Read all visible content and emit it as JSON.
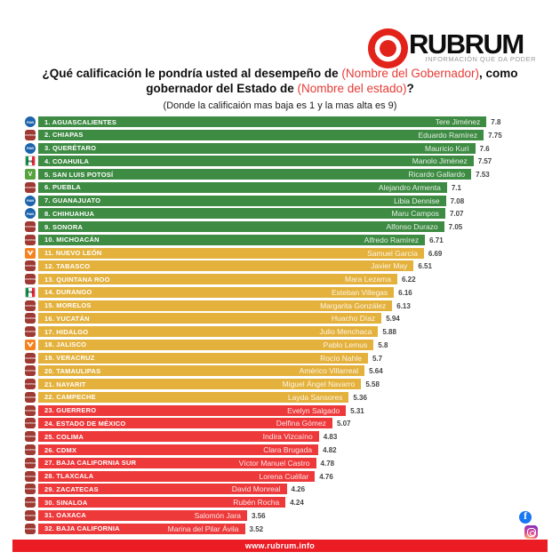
{
  "brand": {
    "name": "RUBRUM",
    "tagline": "INFORMACIÓN QUE DA PODER",
    "logo_color": "#e2231a"
  },
  "title": {
    "line1_black": "¿Qué calificación le pondría usted al desempeño de ",
    "line1_red": "(Nombre del Gobernador)",
    "line1_black2": ", como",
    "line2_black": "gobernador del Estado de ",
    "line2_red": "(Nombre del estado)",
    "line2_black2": "?",
    "subtitle": "(Donde la calificaión mas baja es 1 y la mas alta es 9)",
    "highlight_color": "#e63b35"
  },
  "chart_data": {
    "type": "bar",
    "orientation": "horizontal",
    "title": "¿Qué calificación le pondría usted al desempeño de (Nombre del Gobernador), como gobernador del Estado de (Nombre del estado)?",
    "scale_note": "(Donde la calificaión mas baja es 1 y la mas alta es 9)",
    "value_range": [
      1,
      9
    ],
    "grid": false,
    "legend": false,
    "categories": [
      "AGUASCALIENTES",
      "CHIAPAS",
      "QUERÉTARO",
      "COAHUILA",
      "SAN LUIS POTOSÍ",
      "PUEBLA",
      "GUANAJUATO",
      "CHIHUAHUA",
      "SONORA",
      "MICHOACÁN",
      "NUEVO LEÓN",
      "TABASCO",
      "QUINTANA ROO",
      "DURANGO",
      "MORELOS",
      "YUCATÁN",
      "HIDALGO",
      "JALISCO",
      "VERACRUZ",
      "TAMAULIPAS",
      "NAYARIT",
      "CAMPECHE",
      "GUERRERO",
      "ESTADO DE MÉXICO",
      "COLIMA",
      "CDMX",
      "BAJA CALIFORNIA SUR",
      "TLAXCALA",
      "ZACATECAS",
      "SINALOA",
      "OAXACA",
      "BAJA CALIFORNIA"
    ],
    "values": [
      7.8,
      7.75,
      7.6,
      7.57,
      7.53,
      7.1,
      7.08,
      7.07,
      7.05,
      6.71,
      6.69,
      6.51,
      6.22,
      6.16,
      6.13,
      5.94,
      5.88,
      5.8,
      5.7,
      5.64,
      5.58,
      5.36,
      5.31,
      5.07,
      4.83,
      4.82,
      4.78,
      4.76,
      4.26,
      4.24,
      3.56,
      3.52
    ],
    "value_labels": [
      "7.8",
      "7.75",
      "7.6",
      "7.57",
      "7.53",
      "7.1",
      "7.08",
      "7.07",
      "7.05",
      "6.71",
      "6.69",
      "6.51",
      "6.22",
      "6.16",
      "6.13",
      "5.94",
      "5.88",
      "5.8",
      "5.7",
      "5.64",
      "5.58",
      "5.36",
      "5.31",
      "5.07",
      "4.83",
      "4.82",
      "4.78",
      "4.76",
      "4.26",
      "4.24",
      "3.56",
      "3.52"
    ],
    "governors": [
      "Tere Jiménez",
      "Eduardo Ramírez",
      "Mauricio Kuri",
      "Manolo Jiménez",
      "Ricardo Gallardo",
      "Alejandro Armenta",
      "Libia Dennise",
      "Maru Campos",
      "Alfonso Durazo",
      "Alfredo Ramírez",
      "Samuel García",
      "Javier May",
      "Mara Lezama",
      "Esteban Villegas",
      "Margarita González",
      "Huacho Díaz",
      "Julio Menchaca",
      "Pablo Lemus",
      "Rocío Nahle",
      "Américo Villarreal",
      "Miguel Ángel Navarro",
      "Layda Sansores",
      "Evelyn Salgado",
      "Delfina Gómez",
      "Indira Vizcaíno",
      "Clara Brugada",
      "Víctor Manuel Castro",
      "Lorena Cuéllar",
      "David Monreal",
      "Rubén Rocha",
      "Salomón Jara",
      "Marina del Pilar Ávila"
    ],
    "parties": [
      "PAN",
      "Morena",
      "PAN",
      "PRI",
      "PVEM",
      "Morena",
      "PAN",
      "PAN",
      "Morena",
      "Morena",
      "MC",
      "Morena",
      "Morena",
      "PRI",
      "Morena",
      "Morena",
      "Morena",
      "MC",
      "Morena",
      "Morena",
      "Morena",
      "Morena",
      "Morena",
      "Morena",
      "Morena",
      "Morena",
      "Morena",
      "Morena",
      "Morena",
      "Morena",
      "Morena",
      "Morena"
    ],
    "tiers": [
      "green",
      "green",
      "green",
      "green",
      "green",
      "green",
      "green",
      "green",
      "green",
      "green",
      "yellow",
      "yellow",
      "yellow",
      "yellow",
      "yellow",
      "yellow",
      "yellow",
      "yellow",
      "yellow",
      "yellow",
      "yellow",
      "yellow",
      "red",
      "red",
      "red",
      "red",
      "red",
      "red",
      "red",
      "red",
      "red",
      "red"
    ]
  },
  "tier_colors": {
    "green": "#3e8b43",
    "yellow": "#e4b13c",
    "red": "#ee393b"
  },
  "party_logo_text": {
    "PAN": "PAN",
    "Morena": "morena",
    "PRI": "PRI",
    "PVEM": "V",
    "MC": ""
  },
  "footer": {
    "url": "www.rubrum.info",
    "bar_color": "#ec1c24"
  },
  "social": {
    "icons": [
      "facebook",
      "instagram"
    ]
  }
}
